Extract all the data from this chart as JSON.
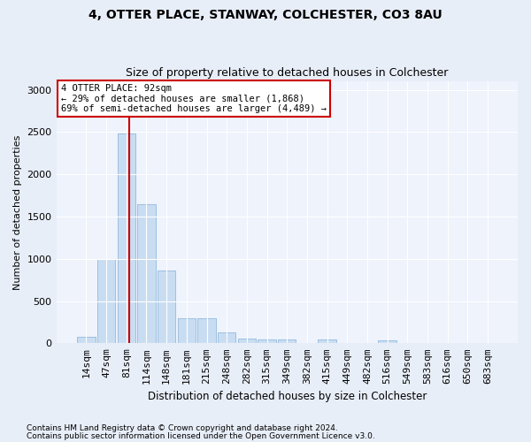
{
  "title1": "4, OTTER PLACE, STANWAY, COLCHESTER, CO3 8AU",
  "title2": "Size of property relative to detached houses in Colchester",
  "xlabel": "Distribution of detached houses by size in Colchester",
  "ylabel": "Number of detached properties",
  "categories": [
    "14sqm",
    "47sqm",
    "81sqm",
    "114sqm",
    "148sqm",
    "181sqm",
    "215sqm",
    "248sqm",
    "282sqm",
    "315sqm",
    "349sqm",
    "382sqm",
    "415sqm",
    "449sqm",
    "482sqm",
    "516sqm",
    "549sqm",
    "583sqm",
    "616sqm",
    "650sqm",
    "683sqm"
  ],
  "values": [
    75,
    1000,
    2480,
    1650,
    860,
    300,
    300,
    130,
    60,
    50,
    50,
    0,
    50,
    0,
    0,
    30,
    0,
    0,
    0,
    0,
    0
  ],
  "bar_color": "#c9ddf2",
  "bar_edgecolor": "#9dbfe0",
  "vline_color": "#cc0000",
  "vline_pos": 2.15,
  "annotation_text": "4 OTTER PLACE: 92sqm\n← 29% of detached houses are smaller (1,868)\n69% of semi-detached houses are larger (4,489) →",
  "annotation_box_edgecolor": "#cc0000",
  "ylim": [
    0,
    3100
  ],
  "yticks": [
    0,
    500,
    1000,
    1500,
    2000,
    2500,
    3000
  ],
  "footnote1": "Contains HM Land Registry data © Crown copyright and database right 2024.",
  "footnote2": "Contains public sector information licensed under the Open Government Licence v3.0.",
  "bg_color": "#e8eef8",
  "plot_bg_color": "#eef3fc"
}
